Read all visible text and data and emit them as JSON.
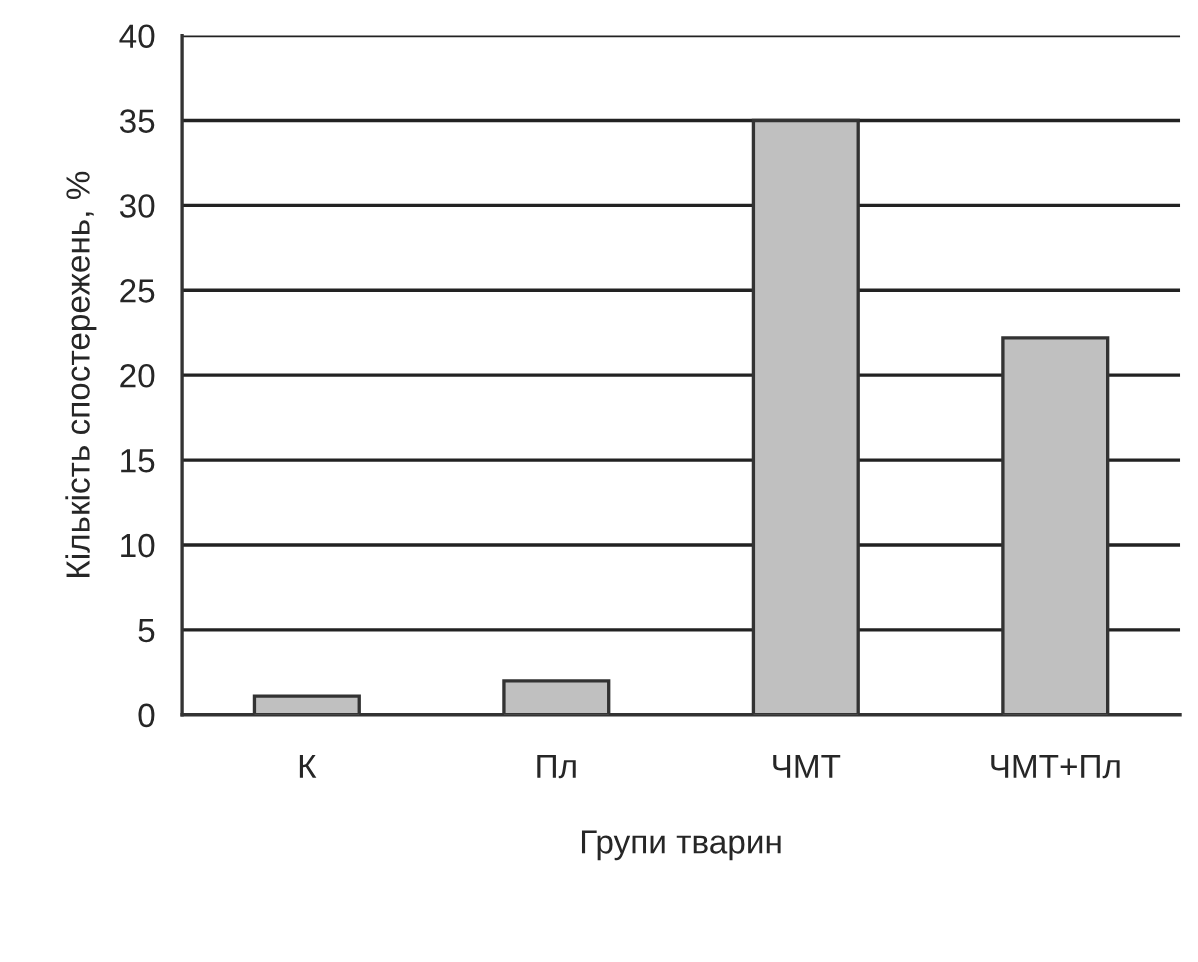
{
  "chart_data": {
    "type": "bar",
    "xlabel": "Групи тварин",
    "ylabel": "Кількість спостережень, %",
    "categories": [
      "К",
      "Пл",
      "ЧМТ",
      "ЧМТ+Пл"
    ],
    "values": [
      1.1,
      2,
      35,
      22.2
    ],
    "color": "#c0c0c0",
    "ylim": [
      0,
      40
    ],
    "yticks": [
      0,
      5,
      10,
      15,
      20,
      25,
      30,
      35,
      40
    ],
    "grid": "y",
    "legend": false
  }
}
